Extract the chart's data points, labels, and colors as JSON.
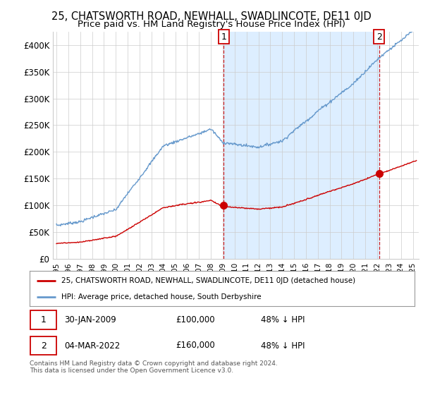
{
  "title": "25, CHATSWORTH ROAD, NEWHALL, SWADLINCOTE, DE11 0JD",
  "subtitle": "Price paid vs. HM Land Registry's House Price Index (HPI)",
  "title_fontsize": 10.5,
  "subtitle_fontsize": 9.5,
  "ylabel_ticks": [
    "£0",
    "£50K",
    "£100K",
    "£150K",
    "£200K",
    "£250K",
    "£300K",
    "£350K",
    "£400K"
  ],
  "ytick_values": [
    0,
    50000,
    100000,
    150000,
    200000,
    250000,
    300000,
    350000,
    400000
  ],
  "ylim": [
    0,
    425000
  ],
  "xlim_start": 1994.7,
  "xlim_end": 2025.5,
  "xtick_years": [
    1995,
    1996,
    1997,
    1998,
    1999,
    2000,
    2001,
    2002,
    2003,
    2004,
    2005,
    2006,
    2007,
    2008,
    2009,
    2010,
    2011,
    2012,
    2013,
    2014,
    2015,
    2016,
    2017,
    2018,
    2019,
    2020,
    2021,
    2022,
    2023,
    2024,
    2025
  ],
  "sale1_x": 2009.08,
  "sale1_y": 100000,
  "sale1_label": "1",
  "sale2_x": 2022.17,
  "sale2_y": 160000,
  "sale2_label": "2",
  "sale_color": "#cc0000",
  "hpi_color": "#6699cc",
  "shade_color": "#ddeeff",
  "legend_label_red": "25, CHATSWORTH ROAD, NEWHALL, SWADLINCOTE, DE11 0JD (detached house)",
  "legend_label_blue": "HPI: Average price, detached house, South Derbyshire",
  "table_row1": [
    "1",
    "30-JAN-2009",
    "£100,000",
    "48% ↓ HPI"
  ],
  "table_row2": [
    "2",
    "04-MAR-2022",
    "£160,000",
    "48% ↓ HPI"
  ],
  "footnote": "Contains HM Land Registry data © Crown copyright and database right 2024.\nThis data is licensed under the Open Government Licence v3.0.",
  "bg_color": "#ffffff",
  "grid_color": "#cccccc"
}
